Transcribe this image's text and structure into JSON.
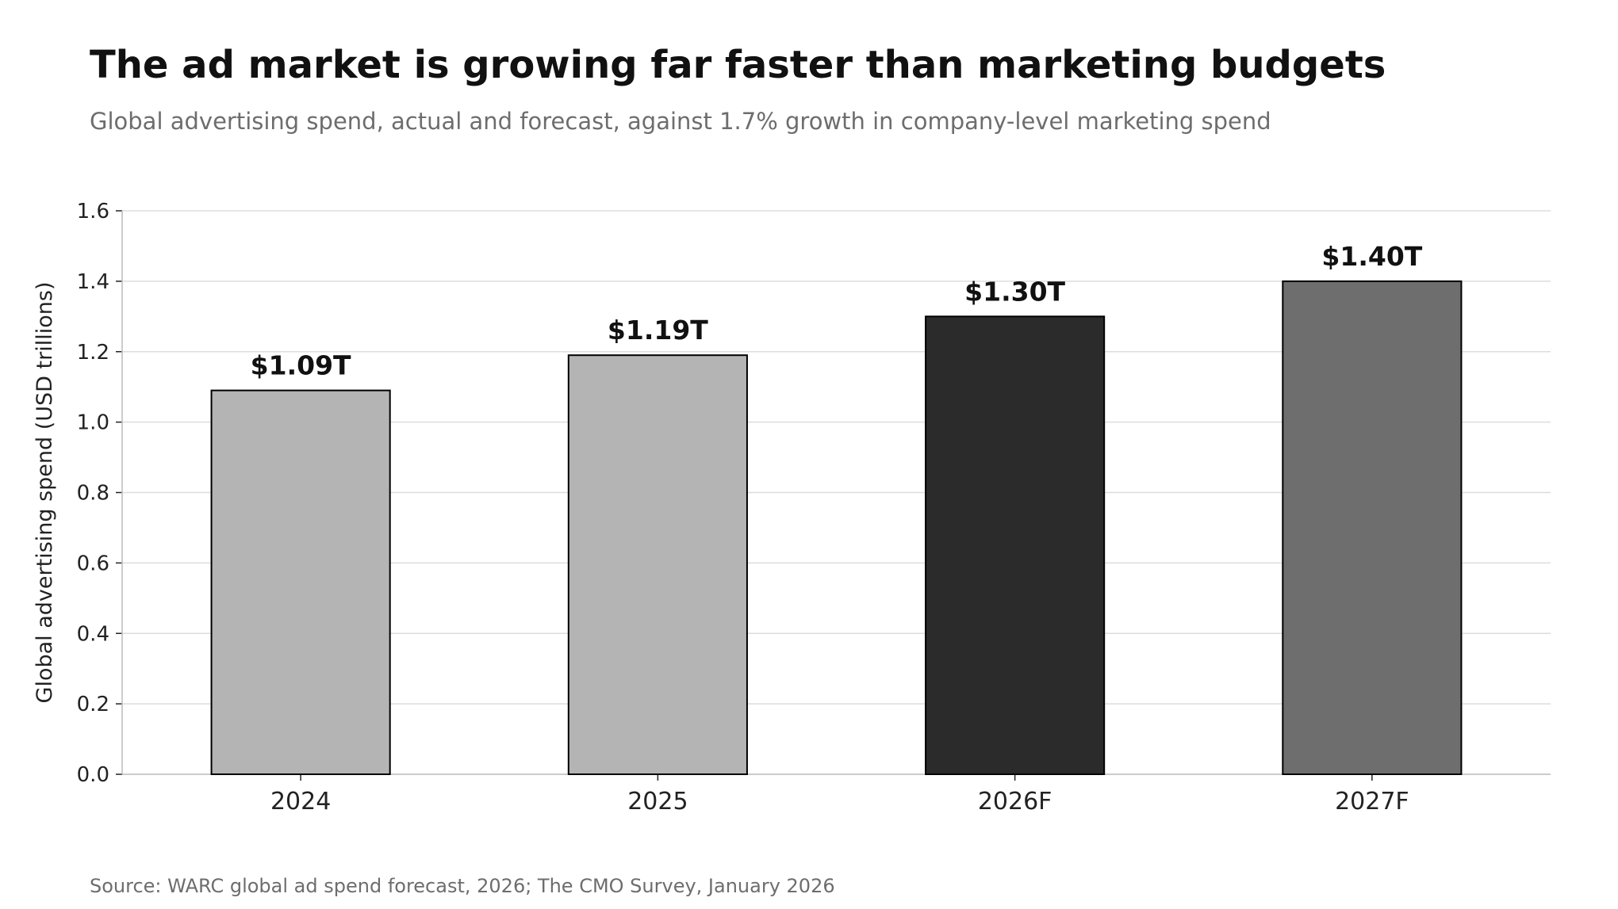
{
  "header": {
    "title": "The ad market is growing far faster than marketing budgets",
    "subtitle": "Global advertising spend, actual and forecast, against 1.7% growth in company-level marketing spend"
  },
  "footer": {
    "source": "Source: WARC global ad spend forecast, 2026; The CMO Survey, January 2026"
  },
  "chart_data": {
    "type": "bar",
    "title": "The ad market is growing far faster than marketing budgets",
    "subtitle": "Global advertising spend, actual and forecast, against 1.7% growth in company-level marketing spend",
    "xlabel": "",
    "ylabel": "Global advertising spend (USD trillions)",
    "categories": [
      "2024",
      "2025",
      "2026F",
      "2027F"
    ],
    "values": [
      1.09,
      1.19,
      1.3,
      1.4
    ],
    "data_labels": [
      "$1.09T",
      "$1.19T",
      "$1.30T",
      "$1.40T"
    ],
    "bar_colors": [
      "#b4b4b4",
      "#b4b4b4",
      "#2b2b2b",
      "#6e6e6e"
    ],
    "bar_edge_color": "#000000",
    "ylim": [
      0,
      1.6
    ],
    "yticks": [
      0.0,
      0.2,
      0.4,
      0.6,
      0.8,
      1.0,
      1.2,
      1.4,
      1.6
    ],
    "ytick_labels": [
      "0.0",
      "0.2",
      "0.4",
      "0.6",
      "0.8",
      "1.0",
      "1.2",
      "1.4",
      "1.6"
    ],
    "grid": "horizontal",
    "legend": "none",
    "source": "Source: WARC global ad spend forecast, 2026; The CMO Survey, January 2026"
  }
}
